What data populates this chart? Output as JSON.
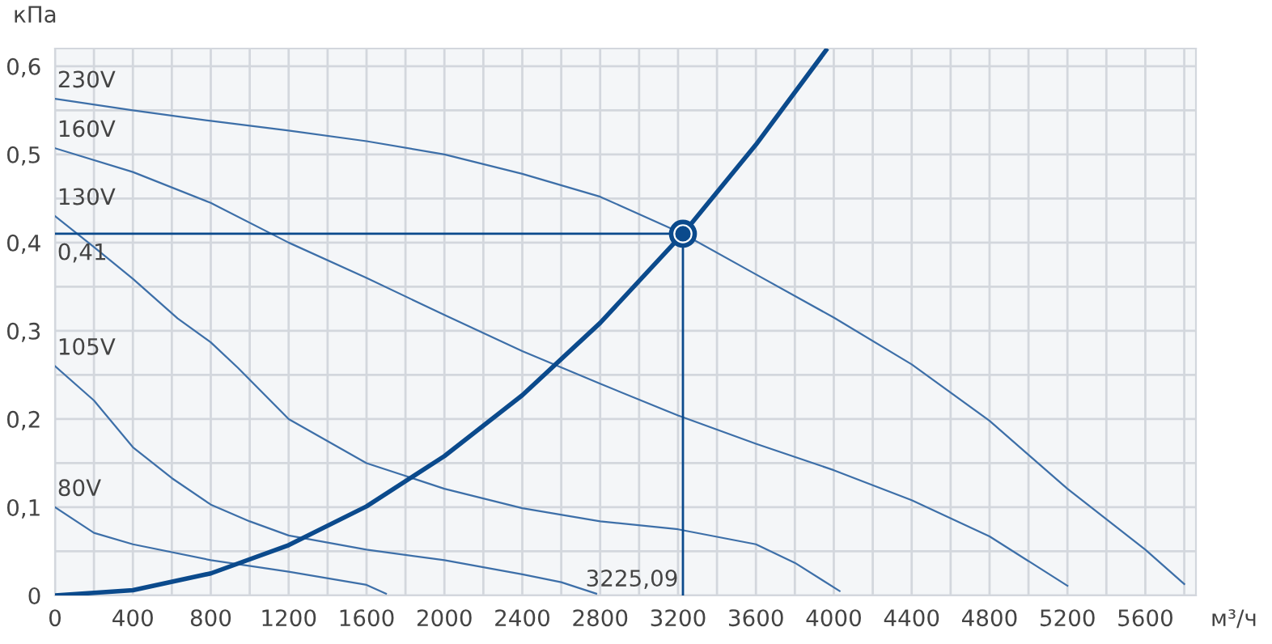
{
  "chart_data": {
    "type": "line",
    "xlabel": "м³/ч",
    "ylabel": "кПа",
    "xlim": [
      0,
      5860
    ],
    "ylim": [
      0,
      0.62
    ],
    "xticks": [
      0,
      {
        "value": 200,
        "label": null
      },
      400,
      {
        "value": 600,
        "label": null
      },
      800,
      {
        "value": 1000,
        "label": null
      },
      1200,
      {
        "value": 1400,
        "label": null
      },
      1600,
      {
        "value": 1800,
        "label": null
      },
      2000,
      {
        "value": 2200,
        "label": null
      },
      2400,
      {
        "value": 2600,
        "label": null
      },
      2800,
      {
        "value": 3000,
        "label": null
      },
      3200,
      {
        "value": 3400,
        "label": null
      },
      3600,
      {
        "value": 3800,
        "label": null
      },
      4000,
      {
        "value": 4200,
        "label": null
      },
      4400,
      {
        "value": 4600,
        "label": null
      },
      4800,
      {
        "value": 5000,
        "label": null
      },
      5200,
      {
        "value": 5400,
        "label": null
      },
      5600,
      {
        "value": 5800,
        "label": null
      }
    ],
    "yticks": [
      0,
      {
        "value": 0.05,
        "label": null
      },
      {
        "value": 0.1,
        "label": "0,1"
      },
      {
        "value": 0.15,
        "label": null
      },
      {
        "value": 0.2,
        "label": "0,2"
      },
      {
        "value": 0.25,
        "label": null
      },
      {
        "value": 0.3,
        "label": "0,3"
      },
      {
        "value": 0.35,
        "label": null
      },
      {
        "value": 0.4,
        "label": "0,4"
      },
      {
        "value": 0.45,
        "label": null
      },
      {
        "value": 0.5,
        "label": "0,5"
      },
      {
        "value": 0.55,
        "label": null
      },
      {
        "value": 0.6,
        "label": "0,6"
      }
    ],
    "grid": true,
    "legend": false,
    "marker": "none",
    "line_style": "solid",
    "series": [
      {
        "name": "230V",
        "color": "#3d6fa8",
        "x": [
          0,
          400,
          800,
          1200,
          1600,
          2000,
          2400,
          2800,
          3225.09,
          3600,
          4000,
          4400,
          4800,
          5200,
          5600,
          5800
        ],
        "values": [
          0.563,
          0.55,
          0.538,
          0.527,
          0.515,
          0.5,
          0.478,
          0.452,
          0.41,
          0.364,
          0.315,
          0.262,
          0.198,
          0.121,
          0.052,
          0.013
        ]
      },
      {
        "name": "160V",
        "color": "#3d6fa8",
        "x": [
          0,
          400,
          800,
          1200,
          1600,
          2000,
          2400,
          2800,
          3200,
          3600,
          4000,
          4400,
          4800,
          5200
        ],
        "values": [
          0.507,
          0.48,
          0.445,
          0.4,
          0.36,
          0.318,
          0.277,
          0.24,
          0.204,
          0.172,
          0.142,
          0.108,
          0.067,
          0.011
        ]
      },
      {
        "name": "130V",
        "color": "#3d6fa8",
        "x": [
          0,
          200,
          400,
          630,
          800,
          940,
          1200,
          1600,
          2000,
          2400,
          2800,
          3200,
          3600,
          3800,
          4030
        ],
        "values": [
          0.43,
          0.395,
          0.359,
          0.314,
          0.287,
          0.258,
          0.2,
          0.15,
          0.121,
          0.099,
          0.084,
          0.075,
          0.058,
          0.037,
          0.005
        ]
      },
      {
        "name": "105V",
        "color": "#3d6fa8",
        "x": [
          0,
          200,
          400,
          600,
          800,
          1000,
          1200,
          1600,
          2000,
          2400,
          2600,
          2780
        ],
        "values": [
          0.26,
          0.221,
          0.168,
          0.133,
          0.103,
          0.084,
          0.068,
          0.052,
          0.04,
          0.024,
          0.015,
          0.002
        ]
      },
      {
        "name": "80V",
        "color": "#3d6fa8",
        "x": [
          0,
          200,
          400,
          800,
          1200,
          1600,
          1700
        ],
        "values": [
          0.1,
          0.071,
          0.058,
          0.04,
          0.027,
          0.012,
          0.002
        ]
      },
      {
        "color": "#0b4a8c",
        "x": [
          0,
          400,
          800,
          1200,
          1600,
          2000,
          2400,
          2800,
          3225.09,
          3600,
          3960
        ],
        "values": [
          0,
          0.006,
          0.025,
          0.057,
          0.101,
          0.158,
          0.227,
          0.309,
          0.41,
          0.511,
          0.618
        ]
      },
      {
        "type": "scatter",
        "marker": "circle",
        "color": "#0b4a8c",
        "x": [
          3225.09
        ],
        "values": [
          0.41
        ]
      }
    ],
    "ref_lines": [
      {
        "axis": "y",
        "value": 0.41,
        "label": "0,41",
        "color": "#0b4a8c"
      },
      {
        "axis": "x",
        "value": 3225.09,
        "label": "3225,09",
        "color": "#0b4a8c"
      }
    ]
  }
}
